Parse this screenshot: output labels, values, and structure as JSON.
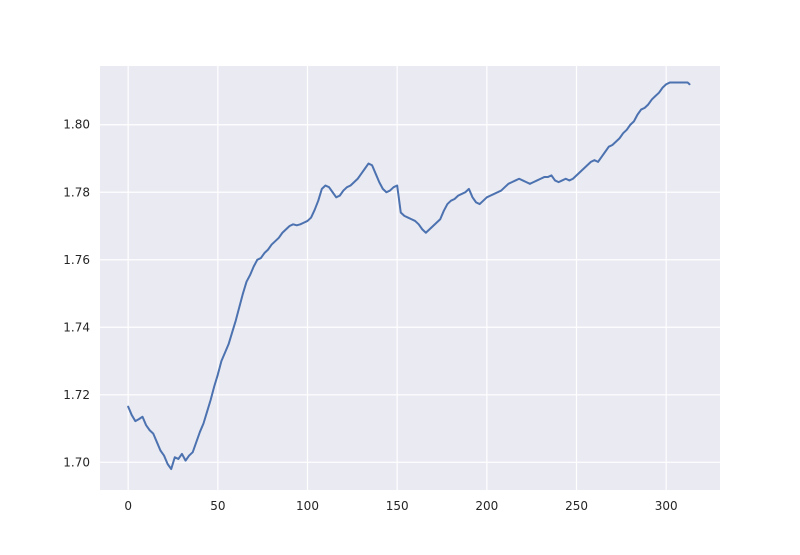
{
  "chart_data": {
    "type": "line",
    "title": "",
    "xlabel": "",
    "ylabel": "",
    "xlim": [
      -15.7,
      330
    ],
    "ylim": [
      1.6918,
      1.8174
    ],
    "x_ticks": [
      0,
      50,
      100,
      150,
      200,
      250,
      300
    ],
    "x_tick_labels": [
      "0",
      "50",
      "100",
      "150",
      "200",
      "250",
      "300"
    ],
    "y_ticks": [
      1.7,
      1.72,
      1.74,
      1.76,
      1.78,
      1.8
    ],
    "y_tick_labels": [
      "1.70",
      "1.72",
      "1.74",
      "1.76",
      "1.78",
      "1.80"
    ],
    "grid": true,
    "legend": "none",
    "colors": {
      "background": "#EAEAF2",
      "grid": "#FFFFFF",
      "line": "#4C72B0"
    },
    "series": [
      {
        "x": [
          0,
          2,
          4,
          6,
          8,
          10,
          12,
          14,
          16,
          18,
          20,
          22,
          24,
          26,
          28,
          30,
          32,
          34,
          36,
          38,
          40,
          42,
          44,
          46,
          48,
          50,
          52,
          54,
          56,
          58,
          60,
          62,
          64,
          66,
          68,
          70,
          72,
          74,
          76,
          78,
          80,
          82,
          84,
          86,
          88,
          90,
          92,
          94,
          96,
          98,
          100,
          102,
          104,
          106,
          108,
          110,
          112,
          114,
          116,
          118,
          120,
          122,
          124,
          126,
          128,
          130,
          132,
          134,
          136,
          138,
          140,
          142,
          144,
          146,
          148,
          150,
          152,
          154,
          156,
          158,
          160,
          162,
          164,
          166,
          168,
          170,
          172,
          174,
          176,
          178,
          180,
          182,
          184,
          186,
          188,
          190,
          192,
          194,
          196,
          198,
          200,
          202,
          204,
          206,
          208,
          210,
          212,
          214,
          216,
          218,
          220,
          222,
          224,
          226,
          228,
          230,
          232,
          234,
          236,
          238,
          240,
          242,
          244,
          246,
          248,
          250,
          252,
          254,
          256,
          258,
          260,
          262,
          264,
          266,
          268,
          270,
          272,
          274,
          276,
          278,
          280,
          282,
          284,
          286,
          288,
          290,
          292,
          294,
          296,
          298,
          300,
          302,
          304,
          306,
          308,
          310,
          312,
          313
        ],
        "y": [
          1.7165,
          1.714,
          1.7122,
          1.7128,
          1.7135,
          1.711,
          1.7095,
          1.7085,
          1.706,
          1.7035,
          1.702,
          1.6995,
          1.698,
          1.7015,
          1.701,
          1.7025,
          1.7005,
          1.702,
          1.703,
          1.706,
          1.709,
          1.7115,
          1.715,
          1.7185,
          1.7225,
          1.726,
          1.73,
          1.7325,
          1.735,
          1.7385,
          1.742,
          1.746,
          1.75,
          1.7535,
          1.7555,
          1.758,
          1.76,
          1.7605,
          1.762,
          1.763,
          1.7645,
          1.7655,
          1.7665,
          1.768,
          1.769,
          1.77,
          1.7705,
          1.7702,
          1.7705,
          1.771,
          1.7715,
          1.7725,
          1.7748,
          1.7775,
          1.781,
          1.782,
          1.7815,
          1.78,
          1.7785,
          1.779,
          1.7805,
          1.7815,
          1.782,
          1.783,
          1.784,
          1.7855,
          1.787,
          1.7885,
          1.788,
          1.7855,
          1.783,
          1.781,
          1.78,
          1.7805,
          1.7815,
          1.782,
          1.774,
          1.773,
          1.7725,
          1.772,
          1.7715,
          1.7705,
          1.769,
          1.768,
          1.769,
          1.77,
          1.771,
          1.772,
          1.7745,
          1.7765,
          1.7775,
          1.778,
          1.779,
          1.7795,
          1.78,
          1.781,
          1.7785,
          1.777,
          1.7765,
          1.7775,
          1.7785,
          1.779,
          1.7795,
          1.78,
          1.7805,
          1.7815,
          1.7825,
          1.783,
          1.7835,
          1.784,
          1.7835,
          1.783,
          1.7825,
          1.783,
          1.7835,
          1.784,
          1.7845,
          1.7845,
          1.785,
          1.7835,
          1.783,
          1.7835,
          1.784,
          1.7835,
          1.784,
          1.785,
          1.786,
          1.787,
          1.788,
          1.789,
          1.7895,
          1.789,
          1.7905,
          1.792,
          1.7935,
          1.794,
          1.795,
          1.796,
          1.7975,
          1.7985,
          1.8,
          1.801,
          1.803,
          1.8045,
          1.805,
          1.806,
          1.8075,
          1.8085,
          1.8095,
          1.811,
          1.812,
          1.8125,
          1.8125,
          1.8125,
          1.8125,
          1.8125,
          1.8125,
          1.812
        ]
      }
    ]
  }
}
